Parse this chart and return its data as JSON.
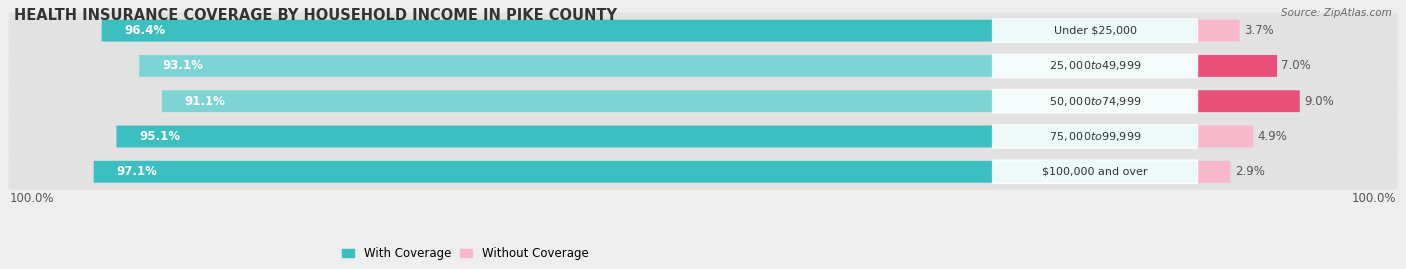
{
  "title": "HEALTH INSURANCE COVERAGE BY HOUSEHOLD INCOME IN PIKE COUNTY",
  "source": "Source: ZipAtlas.com",
  "categories": [
    "Under $25,000",
    "$25,000 to $49,999",
    "$50,000 to $74,999",
    "$75,000 to $99,999",
    "$100,000 and over"
  ],
  "with_coverage": [
    96.4,
    93.1,
    91.1,
    95.1,
    97.1
  ],
  "without_coverage": [
    3.7,
    7.0,
    9.0,
    4.9,
    2.9
  ],
  "color_with": "#3bbfc0",
  "color_with_light": "#7dd4d4",
  "color_without_light": "#f7b8cc",
  "color_without_dark": "#e8507a",
  "bg_color": "#eeeeee",
  "legend_with": "With Coverage",
  "legend_without": "Without Coverage",
  "title_fontsize": 10.5,
  "label_fontsize": 8.5,
  "cat_fontsize": 8.0
}
